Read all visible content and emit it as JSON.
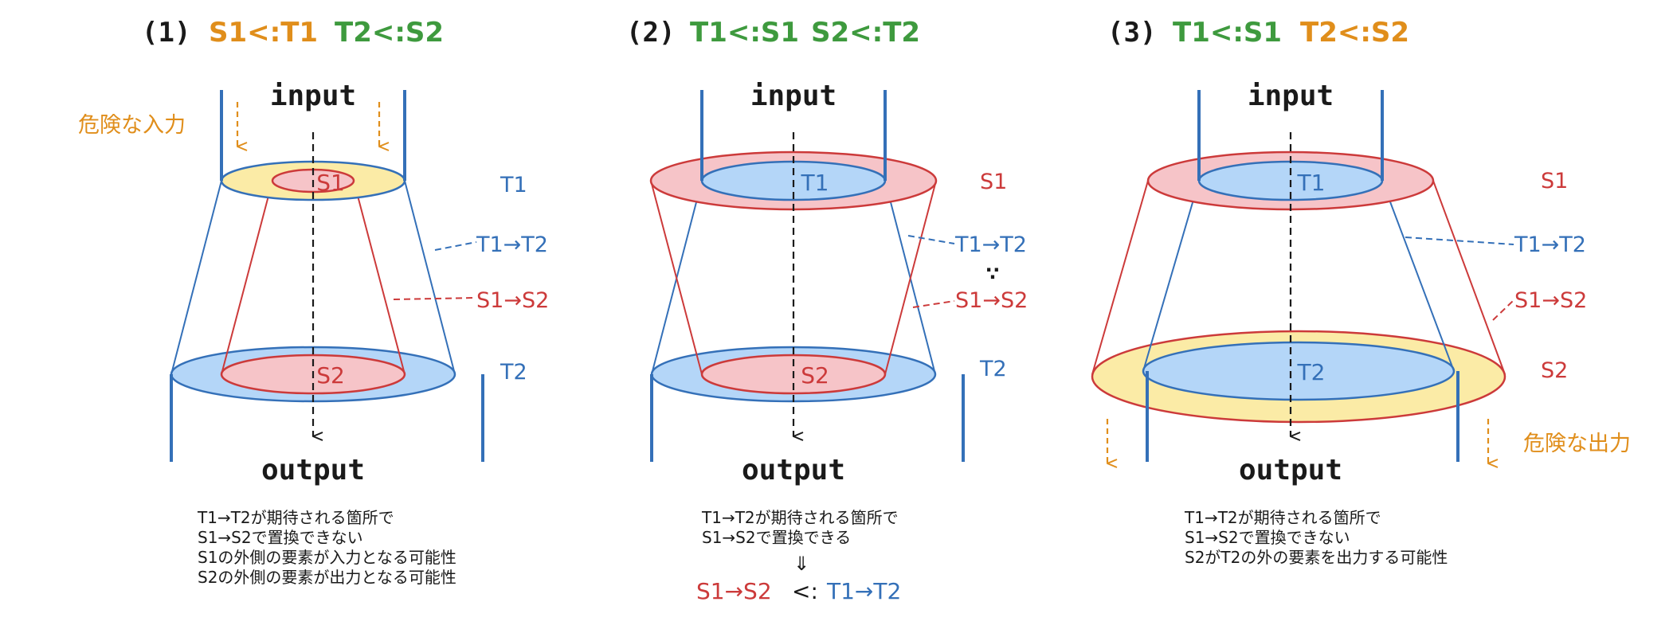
{
  "colors": {
    "orange": "#E08E1B",
    "green": "#3E9A3E",
    "blue": "#3470B8",
    "red": "#CC3A3A",
    "yellow_fill": "#FBEBA6",
    "blue_fill": "#B4D6F8",
    "red_fill": "#F6C4C8",
    "black": "#1a1a1a"
  },
  "panels": [
    {
      "num": "(1)",
      "rel_a": "S1<:T1",
      "rel_b": "T2<:S2",
      "input": "input",
      "output": "output",
      "label_top": "T1",
      "label_bottom": "T2",
      "label_fn_t": "T1→T2",
      "label_fn_s": "S1→S2",
      "inner_top": "S1",
      "inner_bottom": "S2",
      "danger": "危険な入力",
      "desc": [
        "T1→T2が期待される箇所で",
        "S1→S2で置換できない",
        "S1の外側の要素が入力となる可能性",
        "S2の外側の要素が出力となる可能性"
      ]
    },
    {
      "num": "(2)",
      "rel_a": "T1<:S1",
      "rel_b": "S2<:T2",
      "input": "input",
      "output": "output",
      "label_top": "S1",
      "label_bottom": "T2",
      "label_fn_t": "T1→T2",
      "therefore": "∵",
      "label_fn_s": "S1→S2",
      "inner_top": "T1",
      "inner_bottom": "S2",
      "desc": [
        "T1→T2が期待される箇所で",
        "S1→S2で置換できる"
      ],
      "implies": "⇓",
      "concl_left": "S1→S2",
      "concl_mid": "<:",
      "concl_right": "T1→T2"
    },
    {
      "num": "(3)",
      "rel_a": "T1<:S1",
      "rel_b": "T2<:S2",
      "input": "input",
      "output": "output",
      "label_top": "S1",
      "label_bottom": "S2",
      "label_fn_t": "T1→T2",
      "label_fn_s": "S1→S2",
      "inner_top": "T1",
      "inner_bottom": "T2",
      "danger": "危険な出力",
      "desc": [
        "T1→T2が期待される箇所で",
        "S1→S2で置換できない",
        "S2がT2の外の要素を出力する可能性"
      ]
    }
  ]
}
